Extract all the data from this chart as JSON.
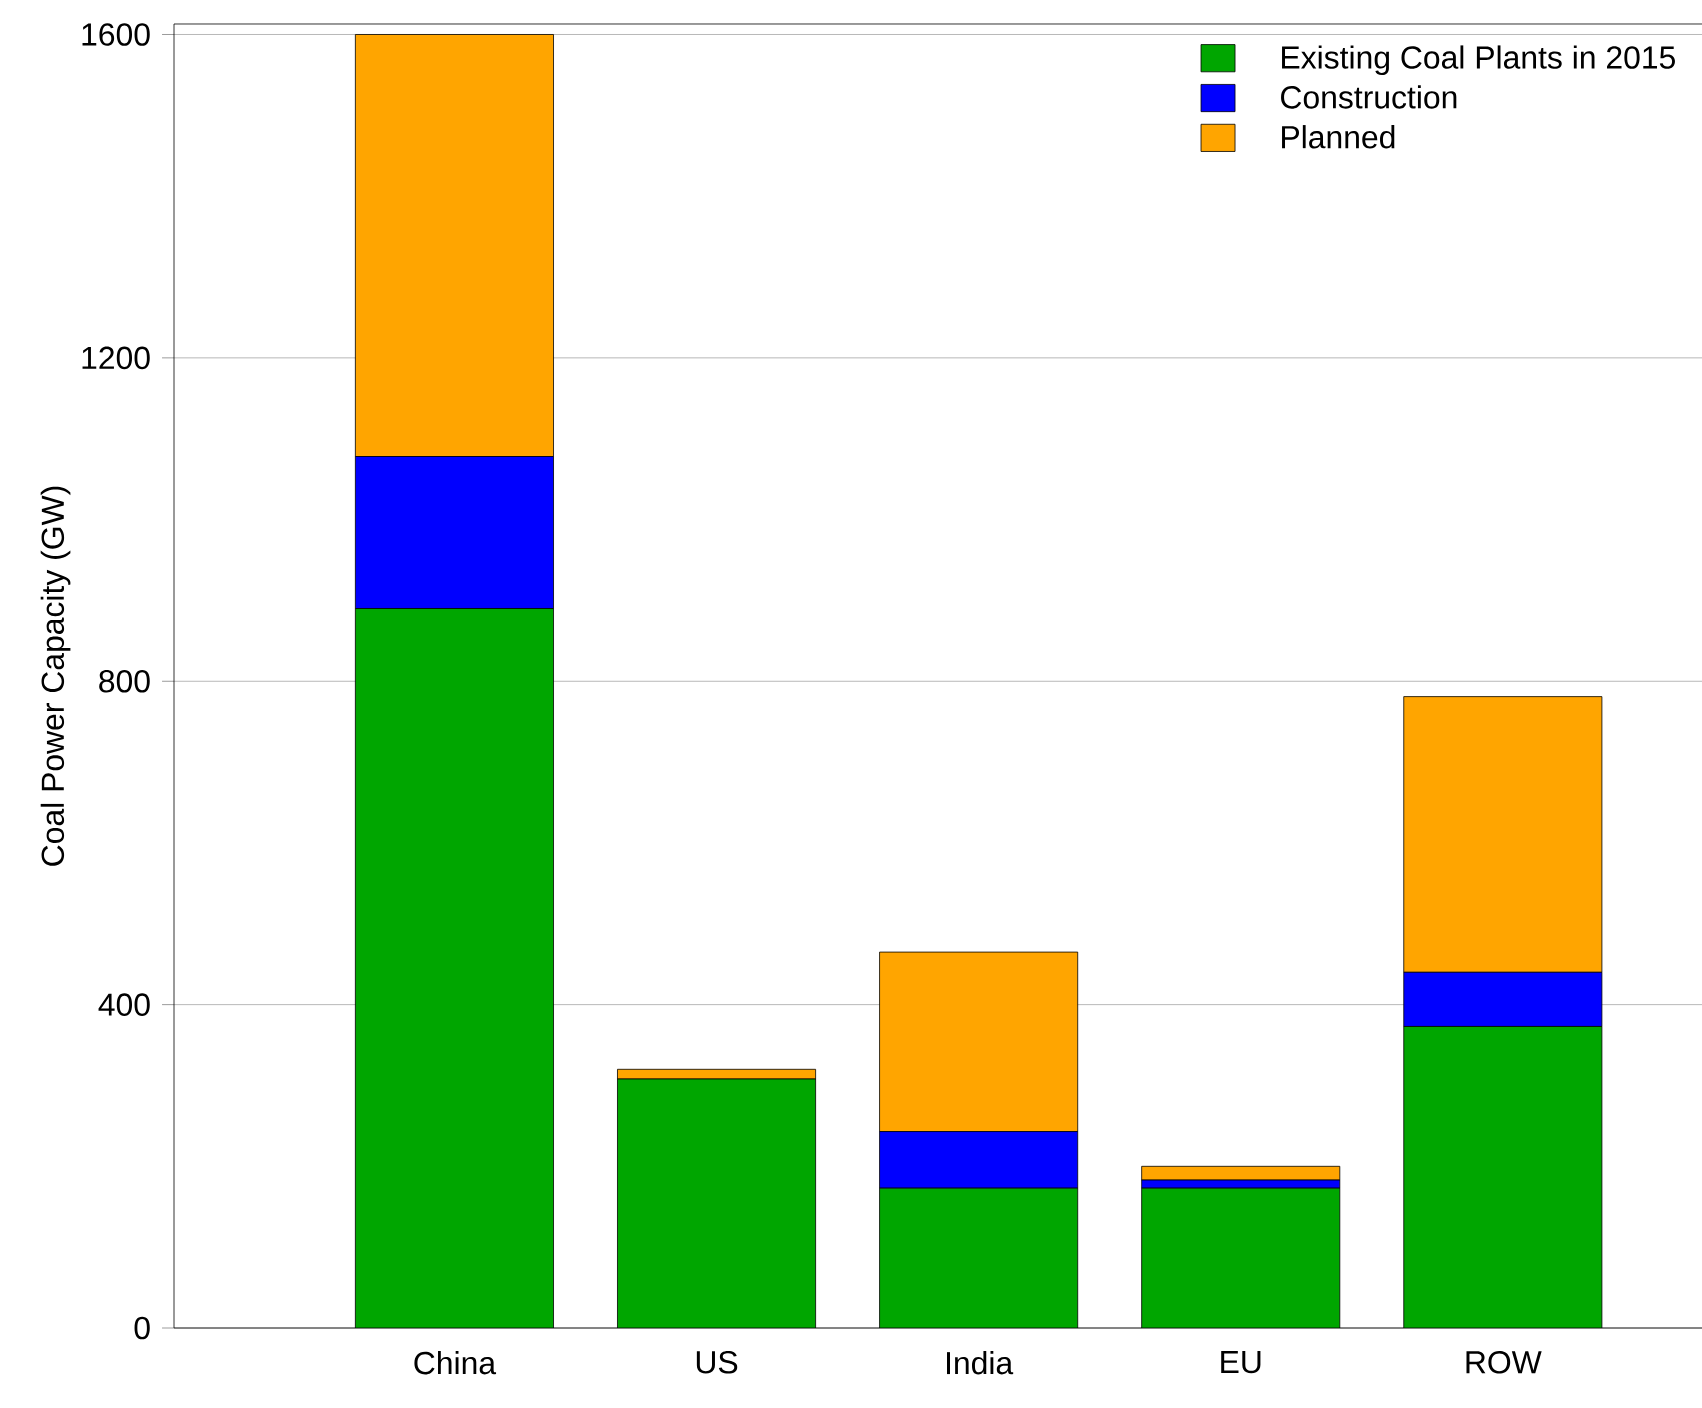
{
  "chart_data": {
    "type": "bar",
    "stacked": true,
    "ylabel": "Coal Power Capacity (GW)",
    "categories": [
      "China",
      "US",
      "India",
      "EU",
      "ROW"
    ],
    "series": [
      {
        "name": "Existing Coal Plants in 2015",
        "color": "#00a600",
        "values": [
          890,
          308,
          173,
          173,
          373
        ]
      },
      {
        "name": "Construction",
        "color": "#0000ff",
        "values": [
          188,
          0,
          70,
          10,
          67
        ]
      },
      {
        "name": "Planned",
        "color": "#ffa500",
        "values": [
          522,
          12,
          222,
          17,
          341
        ]
      }
    ],
    "ylim": [
      0,
      1613
    ],
    "yticks": [
      0,
      400,
      800,
      1200,
      1600
    ],
    "grid": "y",
    "legend": "top right"
  }
}
